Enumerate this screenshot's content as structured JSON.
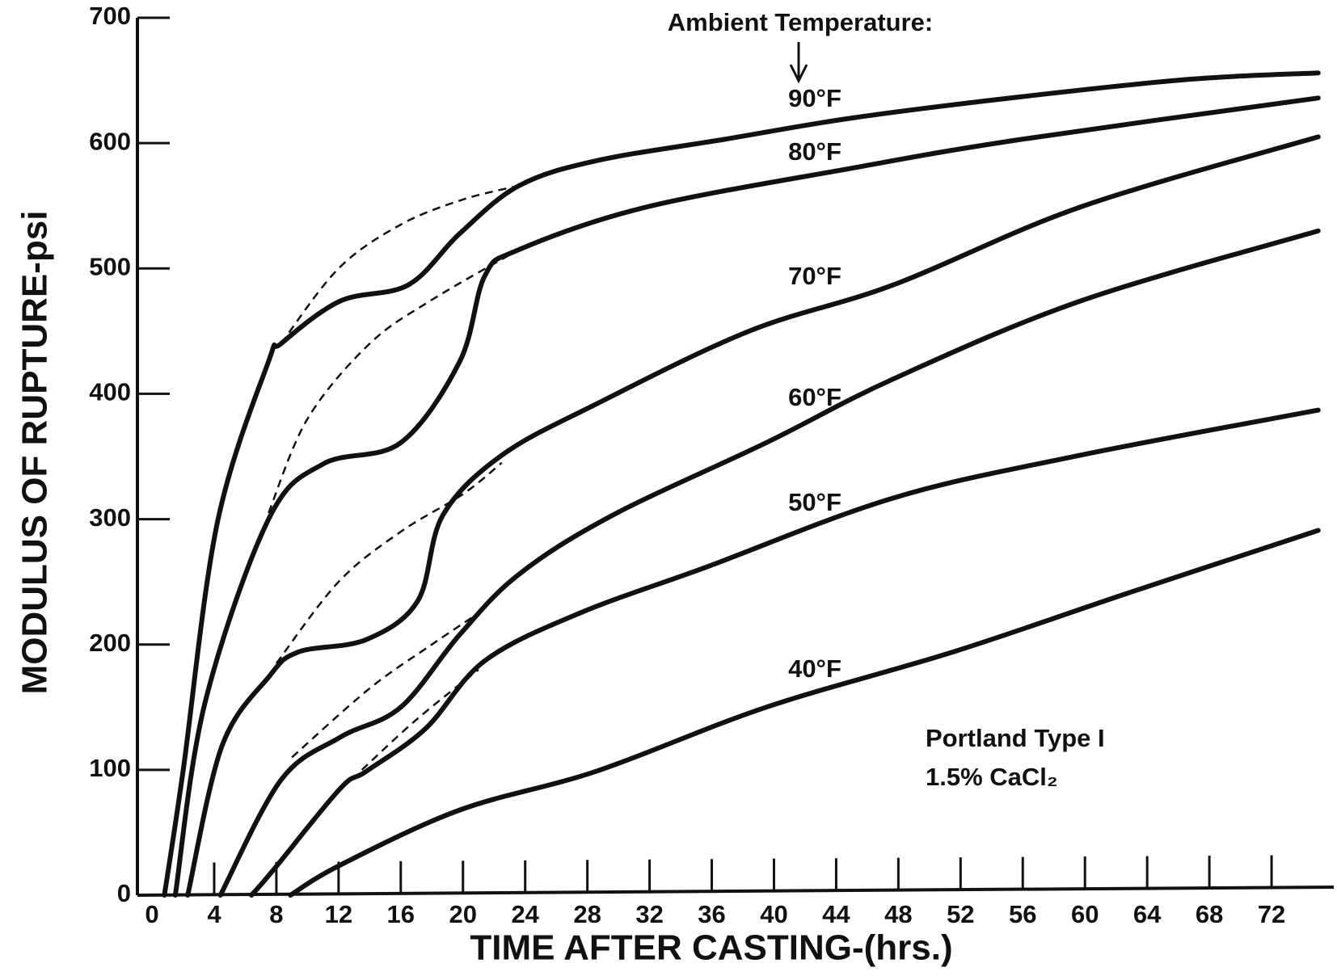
{
  "chart_data": {
    "type": "line",
    "xlabel": "TIME AFTER CASTING-(hrs.)",
    "ylabel": "MODULUS OF RUPTURE-psi",
    "annotations": [
      "Ambient Temperature:",
      "Portland Type I",
      "1.5% CaCl₂"
    ],
    "xlim": [
      0,
      76
    ],
    "ylim": [
      0,
      700
    ],
    "xticks": [
      0,
      4,
      8,
      12,
      16,
      20,
      24,
      28,
      32,
      36,
      40,
      44,
      48,
      52,
      56,
      60,
      64,
      68,
      72
    ],
    "yticks": [
      0,
      100,
      200,
      300,
      400,
      500,
      600,
      700
    ],
    "series": [
      {
        "name": "90°F",
        "color": "#111111",
        "x": [
          0.8,
          2.0,
          4.2,
          7.5,
          8.3,
          12.1,
          16.5,
          19.8,
          23.6,
          28.6,
          36.8,
          45,
          55.9,
          66.8,
          75
        ],
        "values": [
          0,
          99,
          297,
          426,
          440,
          474,
          487,
          528,
          566,
          586,
          603,
          620,
          637,
          651,
          656
        ],
        "dashed_x": [
          8.3,
          12,
          16,
          20,
          23.6
        ],
        "dashed_values": [
          440,
          500,
          535,
          555,
          566
        ]
      },
      {
        "name": "80°F",
        "color": "#111111",
        "x": [
          1.5,
          3.4,
          7.5,
          11,
          16,
          19.8,
          21.4,
          23.6,
          31.8,
          45,
          55.9,
          75
        ],
        "values": [
          0,
          153,
          300,
          344,
          361,
          426,
          494,
          515,
          549,
          580,
          603,
          636
        ],
        "dashed_x": [
          7.5,
          10,
          14,
          18,
          23.6
        ],
        "dashed_values": [
          305,
          380,
          440,
          475,
          515
        ]
      },
      {
        "name": "70°F",
        "color": "#111111",
        "x": [
          2.3,
          4.5,
          7.5,
          9.4,
          13.8,
          17.1,
          18.7,
          22.5,
          28.6,
          38.4,
          47.7,
          59.7,
          75
        ],
        "values": [
          0,
          119,
          174,
          194,
          204,
          235,
          303,
          351,
          392,
          450,
          487,
          549,
          605
        ],
        "dashed_x": [
          8,
          12,
          16,
          20,
          22.5
        ],
        "dashed_values": [
          185,
          250,
          290,
          320,
          345
        ]
      },
      {
        "name": "60°F",
        "color": "#111111",
        "x": [
          4.4,
          8.3,
          12.1,
          16,
          19.8,
          23.6,
          29.6,
          39.5,
          47.7,
          59.7,
          75
        ],
        "values": [
          0,
          92,
          126,
          150,
          208,
          256,
          303,
          361,
          412,
          474,
          530
        ],
        "dashed_x": [
          9,
          14,
          18,
          21
        ],
        "dashed_values": [
          110,
          165,
          200,
          225
        ]
      },
      {
        "name": "50°F",
        "color": "#111111",
        "x": [
          6.4,
          7.8,
          12.1,
          13.8,
          17.6,
          21.4,
          27.5,
          35.7,
          47.7,
          59.7,
          75
        ],
        "values": [
          0,
          20,
          85,
          99,
          133,
          187,
          225,
          262,
          317,
          351,
          387
        ],
        "dashed_x": [
          13.5,
          17,
          21
        ],
        "dashed_values": [
          100,
          140,
          180
        ]
      },
      {
        "name": "40°F",
        "color": "#111111",
        "x": [
          8.9,
          12.1,
          19.8,
          28.6,
          39.5,
          51.5,
          63,
          75
        ],
        "values": [
          0,
          24,
          68,
          99,
          150,
          194,
          242,
          291
        ]
      }
    ]
  }
}
